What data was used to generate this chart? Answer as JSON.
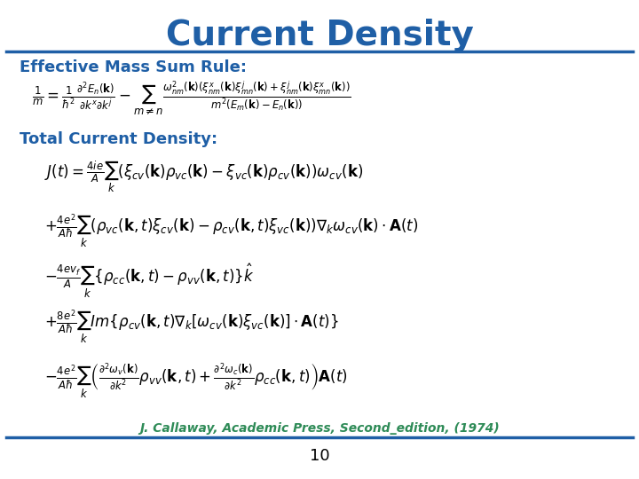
{
  "title": "Current Density",
  "title_color": "#1F5FA6",
  "title_fontsize": 28,
  "bg_color": "#FFFFFF",
  "divider_color": "#1F5FA6",
  "label_eff_mass": "Effective Mass Sum Rule:",
  "label_total": "Total Current Density:",
  "label_color": "#1F5FA6",
  "label_fontsize": 13,
  "eq_color": "#000000",
  "eq_fontsize": 12.0,
  "ref_text": "J. Callaway, Academic Press, Second_edition, (1974)",
  "ref_color": "#2E8B57",
  "ref_fontsize": 10,
  "page_num": "10",
  "page_color": "#000000",
  "page_fontsize": 13,
  "sum_rule_eq": "$\\frac{1}{m} = \\frac{1}{\\hbar^2}\\frac{\\partial^2 E_n(\\mathbf{k})}{\\partial k^x \\partial k^j} - \\sum_{m\\neq n} \\frac{\\omega^2_{nm}(\\mathbf{k})(\\xi^x_{nm}(\\mathbf{k})\\xi^j_{mn}(\\mathbf{k}) + \\xi^j_{nm}(\\mathbf{k})\\xi^x_{mn}(\\mathbf{k}))}{m^2(E_m(\\mathbf{k})-E_n(\\mathbf{k}))}$",
  "eq_line1": "$J(t) = \\frac{4ie}{A}\\sum_{k}\\left(\\xi_{cv}(\\mathbf{k})\\rho_{vc}(\\mathbf{k}) - \\xi_{vc}(\\mathbf{k})\\rho_{cv}(\\mathbf{k})\\right)\\omega_{cv}(\\mathbf{k})$",
  "eq_line2": "$+ \\frac{4e^2}{A\\hbar}\\sum_{k}\\left(\\rho_{vc}(\\mathbf{k},t)\\xi_{cv}(\\mathbf{k}) - \\rho_{cv}(\\mathbf{k},t)\\xi_{vc}(\\mathbf{k})\\right)\\nabla_k\\omega_{cv}(\\mathbf{k})\\cdot\\mathbf{A}(t)$",
  "eq_line3": "$- \\frac{4ev_f}{A}\\sum_{k}\\left\\{\\rho_{cc}(\\mathbf{k},t) - \\rho_{vv}(\\mathbf{k},t)\\right\\}\\hat{k}$",
  "eq_line4": "$+ \\frac{8e^2}{A\\hbar}\\sum_{k} Im\\left\\{\\rho_{cv}(\\mathbf{k},t)\\nabla_k[\\omega_{cv}(\\mathbf{k})\\xi_{vc}(\\mathbf{k})]\\cdot\\mathbf{A}(t)\\right\\}$",
  "eq_line5": "$- \\frac{4e^2}{A\\hbar}\\sum_{k}\\left(\\frac{\\partial^2\\omega_v(\\mathbf{k})}{\\partial k^2}\\rho_{vv}(\\mathbf{k},t) + \\frac{\\partial^2\\omega_c(\\mathbf{k})}{\\partial k^2}\\rho_{cc}(\\mathbf{k},t)\\right)\\mathbf{A}(t)$"
}
